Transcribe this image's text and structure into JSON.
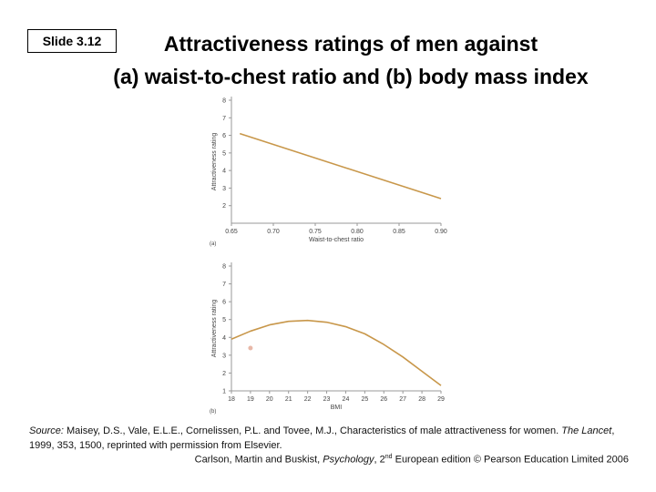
{
  "slide": {
    "badge": "Slide 3.12"
  },
  "title": {
    "line1": "Attractiveness ratings of men against",
    "line2": "(a) waist-to-chest ratio and (b) body mass index"
  },
  "chart_data": [
    {
      "type": "line",
      "panel_label": "(a)",
      "title": "",
      "xlabel": "Waist-to-chest ratio",
      "ylabel": "Attractiveness rating",
      "xlim": [
        0.65,
        0.9
      ],
      "ylim": [
        1,
        8
      ],
      "x_ticks": [
        "0.65",
        "0.70",
        "0.75",
        "0.80",
        "0.85",
        "0.90"
      ],
      "x_tick_values": [
        0.65,
        0.7,
        0.75,
        0.8,
        0.85,
        0.9
      ],
      "y_ticks": [
        2,
        3,
        4,
        5,
        6,
        7,
        8
      ],
      "series": [
        {
          "name": "rating",
          "color": "#c8974a",
          "x": [
            0.66,
            0.9
          ],
          "y": [
            6.1,
            2.4
          ]
        }
      ]
    },
    {
      "type": "line",
      "panel_label": "(b)",
      "title": "",
      "xlabel": "BMI",
      "ylabel": "Attractiveness rating",
      "xlim": [
        18,
        29
      ],
      "ylim": [
        1,
        8
      ],
      "x_ticks": [
        "18",
        "19",
        "20",
        "21",
        "22",
        "23",
        "24",
        "25",
        "26",
        "27",
        "28",
        "29"
      ],
      "x_tick_values": [
        18,
        19,
        20,
        21,
        22,
        23,
        24,
        25,
        26,
        27,
        28,
        29
      ],
      "y_ticks": [
        1,
        2,
        3,
        4,
        5,
        6,
        7,
        8
      ],
      "series": [
        {
          "name": "rating",
          "color": "#c8974a",
          "x": [
            18,
            19,
            20,
            21,
            22,
            23,
            24,
            25,
            26,
            27,
            28,
            29
          ],
          "y": [
            3.9,
            4.35,
            4.7,
            4.9,
            4.95,
            4.85,
            4.6,
            4.2,
            3.6,
            2.9,
            2.1,
            1.3
          ]
        }
      ],
      "points": [
        {
          "x": 19,
          "y": 3.4,
          "color": "#e8b8a8"
        }
      ]
    }
  ],
  "footer": {
    "source_label": "Source:",
    "source_text": " Maisey, D.S., Vale, E.L.E., Cornelissen, P.L. and Tovee, M.J., Characteristics of male attractiveness for women. ",
    "journal": "The Lancet",
    "source_tail": ", 1999, 353, 1500, reprinted with permission from Elsevier.",
    "credit_authors": "Carlson, Martin and Buskist, ",
    "credit_book": "Psychology",
    "credit_edition_num": ", 2",
    "credit_edition_sup": "nd",
    "credit_tail": " European edition © Pearson Education Limited 2006"
  }
}
